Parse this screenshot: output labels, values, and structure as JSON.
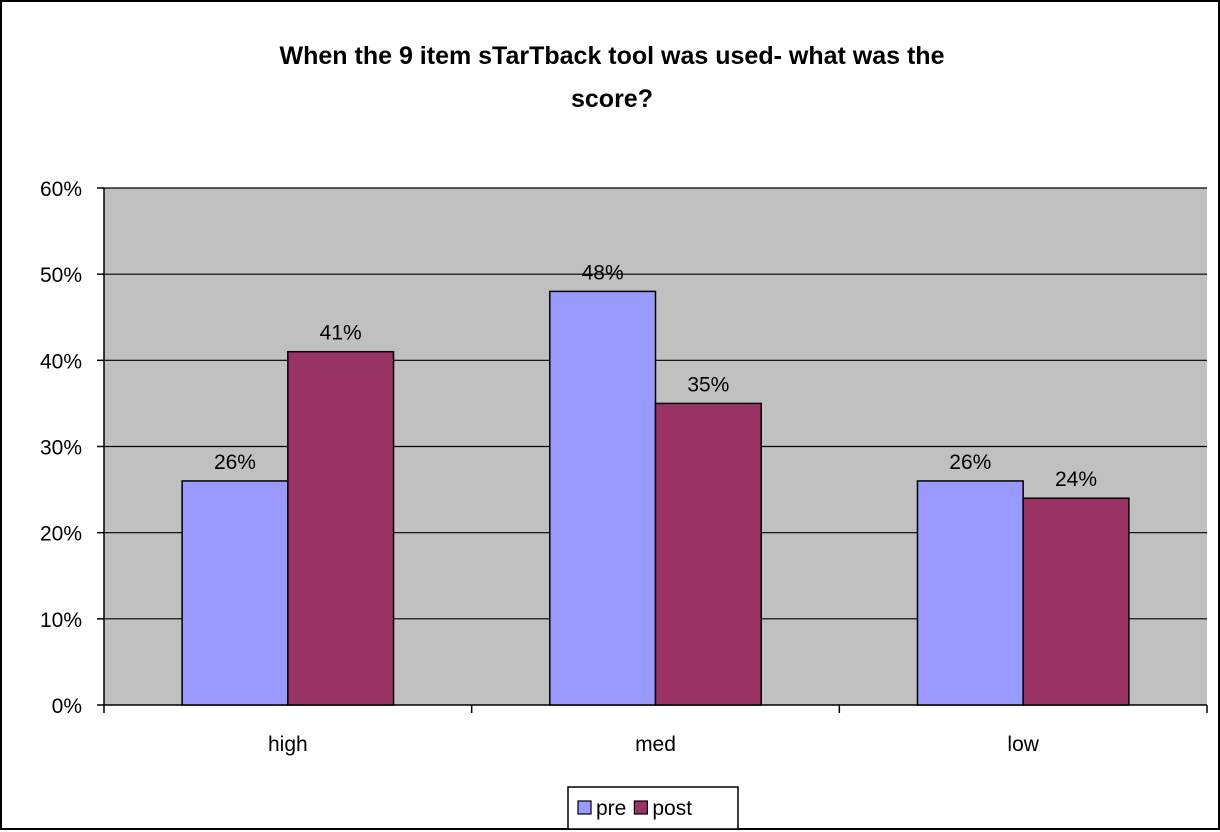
{
  "chart_data": {
    "type": "bar",
    "title_lines": [
      "When the 9 item sTarTback tool was used- what was the",
      "score?"
    ],
    "categories": [
      "high",
      "med",
      "low"
    ],
    "series": [
      {
        "name": "pre",
        "values": [
          26,
          48,
          26
        ],
        "color": "#9999ff"
      },
      {
        "name": "post",
        "values": [
          41,
          35,
          24
        ],
        "color": "#993366"
      }
    ],
    "value_format": "percent",
    "ylim": [
      0,
      60
    ],
    "yticks": [
      0,
      10,
      20,
      30,
      40,
      50,
      60
    ],
    "ytick_labels": [
      "0%",
      "10%",
      "20%",
      "30%",
      "40%",
      "50%",
      "60%"
    ],
    "data_labels": [
      [
        "26%",
        "41%"
      ],
      [
        "48%",
        "35%"
      ],
      [
        "26%",
        "24%"
      ]
    ],
    "grid": true,
    "plot_background": "#c0c0c0",
    "legend_position": "bottom"
  }
}
